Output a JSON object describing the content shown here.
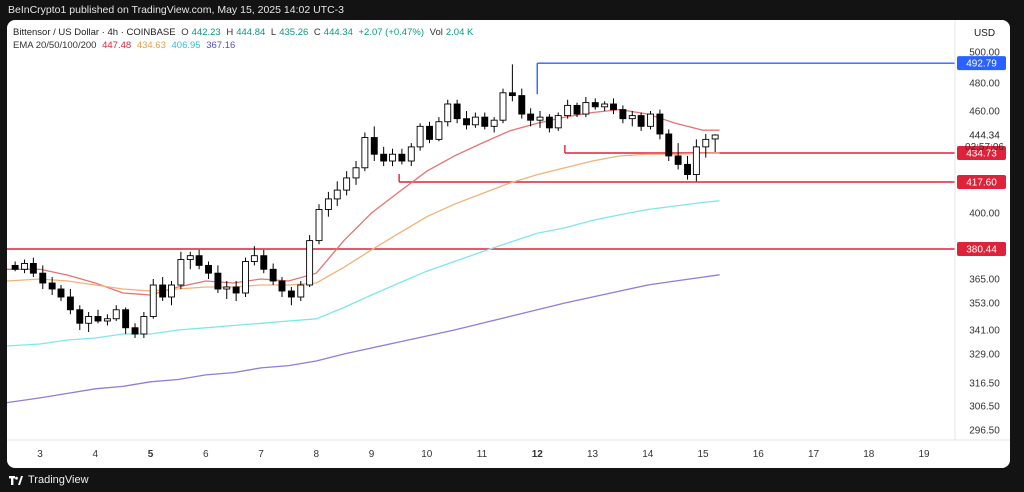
{
  "header": {
    "publisher": "BeInCrypto1 published on TradingView.com, May 15, 2025 14:02 UTC-3"
  },
  "legend": {
    "symbol": "Bittensor / US Dollar · 4h · COINBASE",
    "open_label": "O",
    "open": "442.23",
    "high_label": "H",
    "high": "444.84",
    "low_label": "L",
    "low": "435.26",
    "close_label": "C",
    "close": "444.34",
    "change": "+2.07 (+0.47%)",
    "volume_label": "Vol",
    "volume": "2.04 K",
    "ema_label": "EMA 20/50/100/200",
    "ema20": "447.48",
    "ema50": "434.63",
    "ema100": "406.95",
    "ema200": "367.16"
  },
  "footer": {
    "brand": "TradingView"
  },
  "colors": {
    "bg": "#ffffff",
    "candle_up": "#ffffff",
    "candle_down": "#000000",
    "wick": "#000000",
    "ema20": "#e57373",
    "ema50": "#f0b27a",
    "ema100": "#7ee8e8",
    "ema200": "#8e7ed8",
    "support_line": "#e0213a",
    "resistance_line": "#2962ff",
    "currency": "#1a1a1a"
  },
  "chart_data": {
    "type": "candlestick",
    "currency": "USD",
    "ylim": [
      290,
      505
    ],
    "xlim": [
      2.5,
      19.5
    ],
    "x_ticks": [
      {
        "x": 3,
        "label": "3",
        "bold": false
      },
      {
        "x": 4,
        "label": "4",
        "bold": false
      },
      {
        "x": 5,
        "label": "5",
        "bold": true
      },
      {
        "x": 6,
        "label": "6",
        "bold": false
      },
      {
        "x": 7,
        "label": "7",
        "bold": false
      },
      {
        "x": 8,
        "label": "8",
        "bold": false
      },
      {
        "x": 9,
        "label": "9",
        "bold": false
      },
      {
        "x": 10,
        "label": "10",
        "bold": false
      },
      {
        "x": 11,
        "label": "11",
        "bold": false
      },
      {
        "x": 12,
        "label": "12",
        "bold": true
      },
      {
        "x": 13,
        "label": "13",
        "bold": false
      },
      {
        "x": 14,
        "label": "14",
        "bold": false
      },
      {
        "x": 15,
        "label": "15",
        "bold": false
      },
      {
        "x": 16,
        "label": "16",
        "bold": false
      },
      {
        "x": 17,
        "label": "17",
        "bold": false
      },
      {
        "x": 18,
        "label": "18",
        "bold": false
      },
      {
        "x": 19,
        "label": "19",
        "bold": false
      }
    ],
    "y_ticks": [
      {
        "value": 500,
        "label": "500.00"
      },
      {
        "value": 480,
        "label": "480.00"
      },
      {
        "value": 460,
        "label": "460.00"
      },
      {
        "value": 400,
        "label": "400.00"
      },
      {
        "value": 365,
        "label": "365.00"
      },
      {
        "value": 353,
        "label": "353.00"
      },
      {
        "value": 341,
        "label": "341.00"
      },
      {
        "value": 329,
        "label": "329.00"
      },
      {
        "value": 316.5,
        "label": "316.50"
      },
      {
        "value": 306.5,
        "label": "306.50"
      },
      {
        "value": 296.5,
        "label": "296.50"
      }
    ],
    "last_price": {
      "value": 444.34,
      "label": "444.34",
      "countdown": "02:57:06"
    },
    "levels": [
      {
        "value": 492.79,
        "label": "492.79",
        "kind": "resistance",
        "x_start": 12.0
      },
      {
        "value": 434.73,
        "label": "434.73",
        "kind": "support",
        "x_start": 12.5
      },
      {
        "value": 417.6,
        "label": "417.60",
        "kind": "support",
        "x_start": 9.5
      },
      {
        "value": 380.44,
        "label": "380.44",
        "kind": "support",
        "x_start": 2.5
      }
    ],
    "candles": [
      {
        "x": 2.55,
        "o": 372,
        "h": 374,
        "l": 369,
        "c": 370
      },
      {
        "x": 2.72,
        "o": 370,
        "h": 375,
        "l": 368,
        "c": 373
      },
      {
        "x": 2.88,
        "o": 373,
        "h": 376,
        "l": 366,
        "c": 368
      },
      {
        "x": 3.05,
        "o": 368,
        "h": 372,
        "l": 360,
        "c": 363
      },
      {
        "x": 3.22,
        "o": 363,
        "h": 366,
        "l": 357,
        "c": 360
      },
      {
        "x": 3.38,
        "o": 360,
        "h": 362,
        "l": 354,
        "c": 356
      },
      {
        "x": 3.55,
        "o": 356,
        "h": 360,
        "l": 348,
        "c": 350
      },
      {
        "x": 3.72,
        "o": 350,
        "h": 352,
        "l": 341,
        "c": 344
      },
      {
        "x": 3.88,
        "o": 344,
        "h": 349,
        "l": 340,
        "c": 347
      },
      {
        "x": 4.05,
        "o": 347,
        "h": 350,
        "l": 344,
        "c": 345
      },
      {
        "x": 4.22,
        "o": 345,
        "h": 348,
        "l": 343,
        "c": 346
      },
      {
        "x": 4.38,
        "o": 346,
        "h": 352,
        "l": 345,
        "c": 350
      },
      {
        "x": 4.55,
        "o": 350,
        "h": 351,
        "l": 339,
        "c": 342
      },
      {
        "x": 4.72,
        "o": 342,
        "h": 344,
        "l": 337,
        "c": 339
      },
      {
        "x": 4.88,
        "o": 339,
        "h": 349,
        "l": 337,
        "c": 347
      },
      {
        "x": 5.05,
        "o": 347,
        "h": 365,
        "l": 346,
        "c": 362
      },
      {
        "x": 5.22,
        "o": 362,
        "h": 366,
        "l": 354,
        "c": 356
      },
      {
        "x": 5.38,
        "o": 356,
        "h": 364,
        "l": 352,
        "c": 362
      },
      {
        "x": 5.55,
        "o": 362,
        "h": 379,
        "l": 360,
        "c": 375
      },
      {
        "x": 5.72,
        "o": 375,
        "h": 379,
        "l": 370,
        "c": 377
      },
      {
        "x": 5.88,
        "o": 377,
        "h": 380,
        "l": 370,
        "c": 372
      },
      {
        "x": 6.05,
        "o": 372,
        "h": 374,
        "l": 365,
        "c": 368
      },
      {
        "x": 6.22,
        "o": 368,
        "h": 372,
        "l": 358,
        "c": 360
      },
      {
        "x": 6.38,
        "o": 360,
        "h": 364,
        "l": 355,
        "c": 361
      },
      {
        "x": 6.55,
        "o": 361,
        "h": 364,
        "l": 354,
        "c": 358
      },
      {
        "x": 6.72,
        "o": 358,
        "h": 376,
        "l": 356,
        "c": 374
      },
      {
        "x": 6.88,
        "o": 374,
        "h": 382,
        "l": 372,
        "c": 377
      },
      {
        "x": 7.05,
        "o": 377,
        "h": 380,
        "l": 368,
        "c": 370
      },
      {
        "x": 7.22,
        "o": 370,
        "h": 373,
        "l": 362,
        "c": 364
      },
      {
        "x": 7.38,
        "o": 364,
        "h": 366,
        "l": 356,
        "c": 359
      },
      {
        "x": 7.55,
        "o": 359,
        "h": 361,
        "l": 352,
        "c": 356
      },
      {
        "x": 7.72,
        "o": 356,
        "h": 364,
        "l": 354,
        "c": 362
      },
      {
        "x": 7.88,
        "o": 362,
        "h": 388,
        "l": 361,
        "c": 385
      },
      {
        "x": 8.05,
        "o": 385,
        "h": 405,
        "l": 383,
        "c": 402
      },
      {
        "x": 8.22,
        "o": 402,
        "h": 412,
        "l": 398,
        "c": 408
      },
      {
        "x": 8.38,
        "o": 408,
        "h": 418,
        "l": 404,
        "c": 413
      },
      {
        "x": 8.55,
        "o": 413,
        "h": 424,
        "l": 410,
        "c": 420
      },
      {
        "x": 8.72,
        "o": 420,
        "h": 430,
        "l": 416,
        "c": 426
      },
      {
        "x": 8.88,
        "o": 426,
        "h": 446,
        "l": 424,
        "c": 443
      },
      {
        "x": 9.05,
        "o": 443,
        "h": 450,
        "l": 430,
        "c": 434
      },
      {
        "x": 9.22,
        "o": 434,
        "h": 438,
        "l": 427,
        "c": 430
      },
      {
        "x": 9.38,
        "o": 430,
        "h": 437,
        "l": 427,
        "c": 434
      },
      {
        "x": 9.55,
        "o": 434,
        "h": 437,
        "l": 428,
        "c": 430
      },
      {
        "x": 9.72,
        "o": 430,
        "h": 440,
        "l": 427,
        "c": 438
      },
      {
        "x": 9.88,
        "o": 438,
        "h": 452,
        "l": 436,
        "c": 450
      },
      {
        "x": 10.05,
        "o": 450,
        "h": 453,
        "l": 440,
        "c": 442
      },
      {
        "x": 10.22,
        "o": 442,
        "h": 456,
        "l": 441,
        "c": 453
      },
      {
        "x": 10.38,
        "o": 453,
        "h": 468,
        "l": 450,
        "c": 465
      },
      {
        "x": 10.55,
        "o": 465,
        "h": 468,
        "l": 452,
        "c": 455
      },
      {
        "x": 10.72,
        "o": 455,
        "h": 460,
        "l": 448,
        "c": 451
      },
      {
        "x": 10.88,
        "o": 451,
        "h": 459,
        "l": 449,
        "c": 456
      },
      {
        "x": 11.05,
        "o": 456,
        "h": 459,
        "l": 448,
        "c": 450
      },
      {
        "x": 11.22,
        "o": 450,
        "h": 456,
        "l": 446,
        "c": 454
      },
      {
        "x": 11.38,
        "o": 454,
        "h": 476,
        "l": 452,
        "c": 473
      },
      {
        "x": 11.55,
        "o": 473,
        "h": 492,
        "l": 467,
        "c": 471
      },
      {
        "x": 11.72,
        "o": 471,
        "h": 476,
        "l": 455,
        "c": 458
      },
      {
        "x": 11.88,
        "o": 458,
        "h": 462,
        "l": 450,
        "c": 454
      },
      {
        "x": 12.05,
        "o": 454,
        "h": 460,
        "l": 449,
        "c": 456
      },
      {
        "x": 12.22,
        "o": 456,
        "h": 458,
        "l": 446,
        "c": 449
      },
      {
        "x": 12.38,
        "o": 449,
        "h": 459,
        "l": 447,
        "c": 457
      },
      {
        "x": 12.55,
        "o": 457,
        "h": 468,
        "l": 455,
        "c": 464
      },
      {
        "x": 12.72,
        "o": 464,
        "h": 466,
        "l": 456,
        "c": 458
      },
      {
        "x": 12.88,
        "o": 458,
        "h": 470,
        "l": 456,
        "c": 466
      },
      {
        "x": 13.05,
        "o": 466,
        "h": 469,
        "l": 461,
        "c": 463
      },
      {
        "x": 13.22,
        "o": 463,
        "h": 467,
        "l": 460,
        "c": 465
      },
      {
        "x": 13.38,
        "o": 465,
        "h": 469,
        "l": 458,
        "c": 461
      },
      {
        "x": 13.55,
        "o": 461,
        "h": 464,
        "l": 452,
        "c": 455
      },
      {
        "x": 13.72,
        "o": 455,
        "h": 460,
        "l": 450,
        "c": 457
      },
      {
        "x": 13.88,
        "o": 457,
        "h": 459,
        "l": 447,
        "c": 450
      },
      {
        "x": 14.05,
        "o": 450,
        "h": 460,
        "l": 448,
        "c": 458
      },
      {
        "x": 14.22,
        "o": 458,
        "h": 461,
        "l": 442,
        "c": 445
      },
      {
        "x": 14.38,
        "o": 445,
        "h": 448,
        "l": 430,
        "c": 433
      },
      {
        "x": 14.55,
        "o": 433,
        "h": 440,
        "l": 425,
        "c": 428
      },
      {
        "x": 14.72,
        "o": 428,
        "h": 433,
        "l": 419,
        "c": 422
      },
      {
        "x": 14.88,
        "o": 422,
        "h": 442,
        "l": 418,
        "c": 438
      },
      {
        "x": 15.05,
        "o": 438,
        "h": 445,
        "l": 432,
        "c": 442
      },
      {
        "x": 15.22,
        "o": 442.23,
        "h": 444.84,
        "l": 435.26,
        "c": 444.34
      }
    ],
    "ema_series": [
      {
        "name": "EMA 20",
        "key": "ema20",
        "x": [
          2.5,
          3.0,
          3.5,
          4.0,
          4.5,
          5.0,
          5.5,
          6.0,
          6.5,
          7.0,
          7.5,
          8.0,
          8.5,
          9.0,
          9.5,
          10.0,
          10.5,
          11.0,
          11.5,
          12.0,
          12.5,
          13.0,
          13.5,
          14.0,
          14.5,
          15.0,
          15.3
        ],
        "y": [
          370,
          370,
          367,
          363,
          358,
          357,
          361,
          364,
          363,
          365,
          364,
          368,
          385,
          400,
          412,
          424,
          433,
          440,
          447,
          452,
          456,
          459,
          461,
          458,
          452,
          447.5,
          447.48
        ]
      },
      {
        "name": "EMA 50",
        "key": "ema50",
        "x": [
          2.5,
          3.0,
          3.5,
          4.0,
          4.5,
          5.0,
          5.5,
          6.0,
          6.5,
          7.0,
          7.5,
          8.0,
          8.5,
          9.0,
          9.5,
          10.0,
          10.5,
          11.0,
          11.5,
          12.0,
          12.5,
          13.0,
          13.5,
          14.0,
          14.5,
          15.0,
          15.3
        ],
        "y": [
          364,
          365,
          364,
          362,
          360,
          359,
          360,
          361,
          361,
          362,
          362,
          363,
          371,
          380,
          389,
          398,
          405,
          411,
          417,
          422,
          426,
          430,
          433,
          434,
          434,
          434.5,
          434.63
        ]
      },
      {
        "name": "EMA 100",
        "key": "ema100",
        "x": [
          2.5,
          3.0,
          3.5,
          4.0,
          4.5,
          5.0,
          5.5,
          6.0,
          6.5,
          7.0,
          7.5,
          8.0,
          8.5,
          9.0,
          9.5,
          10.0,
          10.5,
          11.0,
          11.5,
          12.0,
          12.5,
          13.0,
          13.5,
          14.0,
          14.5,
          15.0,
          15.3
        ],
        "y": [
          333,
          334,
          336,
          337,
          339,
          339,
          341,
          342,
          343,
          344,
          345,
          346,
          351,
          357,
          363,
          369,
          374,
          379,
          384,
          389,
          392,
          396,
          399,
          402,
          404,
          406,
          406.95
        ]
      },
      {
        "name": "EMA 200",
        "key": "ema200",
        "x": [
          2.5,
          3.0,
          3.5,
          4.0,
          4.5,
          5.0,
          5.5,
          6.0,
          6.5,
          7.0,
          7.5,
          8.0,
          8.5,
          9.0,
          9.5,
          10.0,
          10.5,
          11.0,
          11.5,
          12.0,
          12.5,
          13.0,
          13.5,
          14.0,
          14.5,
          15.0,
          15.3
        ],
        "y": [
          308,
          310,
          312,
          314,
          315,
          317,
          318,
          320,
          321,
          323,
          324,
          326,
          329,
          332,
          335,
          338,
          341,
          344,
          347,
          350,
          353,
          356,
          359,
          362,
          364,
          366,
          367.16
        ]
      }
    ]
  }
}
